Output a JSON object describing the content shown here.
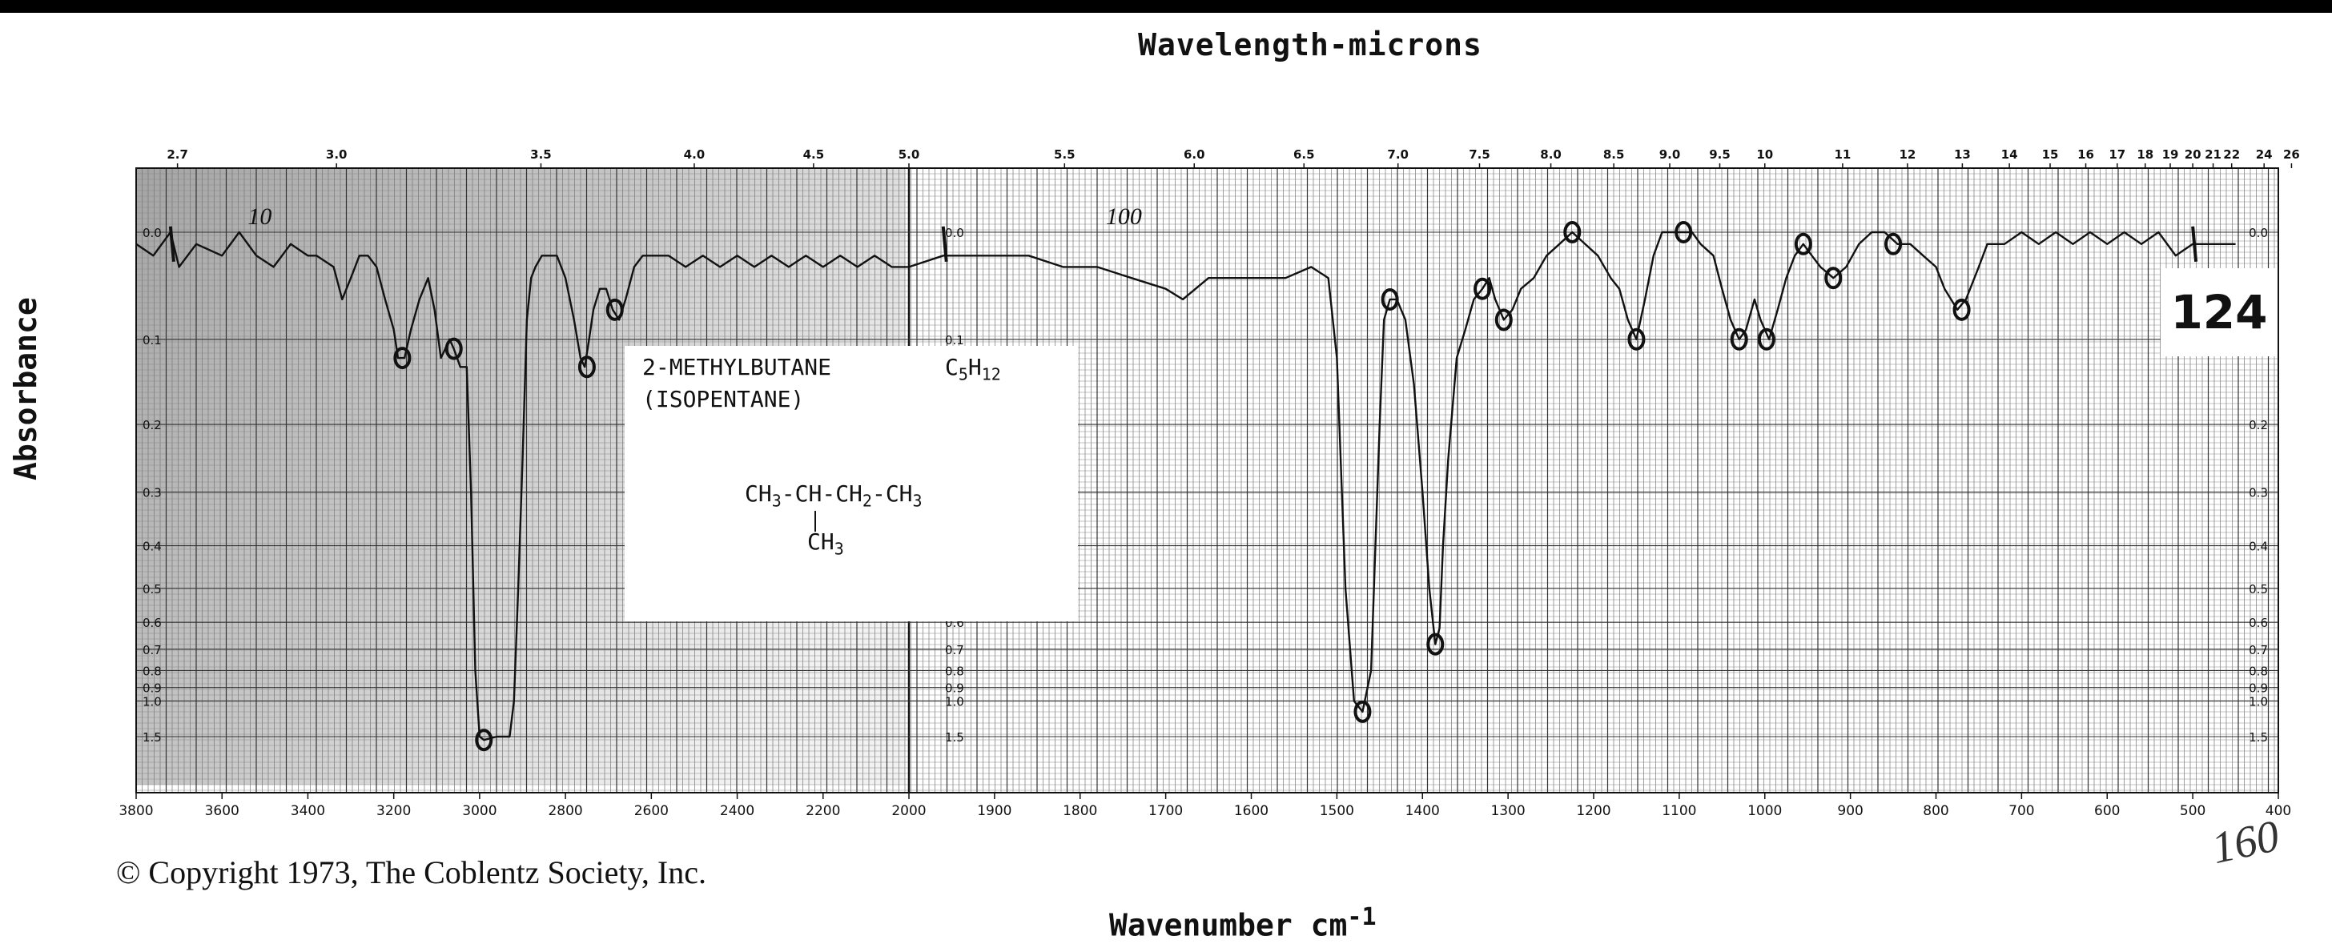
{
  "top_axis_title": "Wavelength-microns",
  "bottom_axis_title": "Wavenumber cm",
  "bottom_axis_exponent": "-1",
  "y_axis_title": "Absorbance",
  "copyright": "© Copyright 1973, The Coblentz Society, Inc.",
  "sample_number": "124",
  "handwritten_note": "160",
  "compound": {
    "name": "2-METHYLBUTANE",
    "alias": "(ISOPENTANE)",
    "formula_parts": [
      "C",
      "5",
      "H",
      "12"
    ],
    "structure_parts": [
      "CH",
      "3",
      "-CH-CH",
      "2",
      "-CH",
      "3"
    ],
    "branch_parts": [
      "CH",
      "3"
    ]
  },
  "colors": {
    "grid": "#6b6b6b",
    "grid_dark": "#2a2a2a",
    "trace": "#111111",
    "shading": "#9a9a9a"
  },
  "chart_data": {
    "type": "line",
    "title": "",
    "xlabel": "Wavenumber cm-1",
    "ylabel": "Absorbance",
    "x_axis_segments": [
      {
        "range": [
          3800,
          2000
        ],
        "ticks": [
          3800,
          3600,
          3400,
          3200,
          3000,
          2800,
          2600,
          2400,
          2200,
          2000
        ]
      },
      {
        "range": [
          2000,
          400
        ],
        "ticks": [
          1900,
          1800,
          1700,
          1600,
          1500,
          1400,
          1300,
          1200,
          1100,
          1000,
          900,
          800,
          700,
          600,
          500,
          400
        ]
      }
    ],
    "top_axis_ticks": [
      "2.7",
      "3.0",
      "3.5",
      "4.0",
      "4.5",
      "5.0",
      "5.5",
      "6.0",
      "6.5",
      "7.0",
      "7.5",
      "8.0",
      "8.5",
      "9.0",
      "9.5",
      "10",
      "11",
      "12",
      "13",
      "14",
      "15",
      "16",
      "17",
      "18",
      "19",
      "20",
      "21",
      "22",
      "24",
      "26"
    ],
    "y_ticks": [
      "0.0",
      "0.1",
      "0.2",
      "0.3",
      "0.4",
      "0.5",
      "0.6",
      "0.7",
      "0.8",
      "0.9",
      "1.0",
      "1.5"
    ],
    "ylim": [
      0,
      1.5
    ],
    "y_scale": "log",
    "annotations": [
      "10",
      "100"
    ],
    "series": [
      {
        "name": "",
        "points": [
          [
            3800,
            0.01
          ],
          [
            3760,
            0.02
          ],
          [
            3720,
            0.0
          ],
          [
            3700,
            0.03
          ],
          [
            3660,
            0.01
          ],
          [
            3600,
            0.02
          ],
          [
            3560,
            0.0
          ],
          [
            3520,
            0.02
          ],
          [
            3480,
            0.03
          ],
          [
            3440,
            0.01
          ],
          [
            3400,
            0.02
          ],
          [
            3380,
            0.02
          ],
          [
            3340,
            0.03
          ],
          [
            3320,
            0.06
          ],
          [
            3300,
            0.04
          ],
          [
            3280,
            0.02
          ],
          [
            3260,
            0.02
          ],
          [
            3240,
            0.03
          ],
          [
            3220,
            0.06
          ],
          [
            3200,
            0.09
          ],
          [
            3190,
            0.12
          ],
          [
            3175,
            0.12
          ],
          [
            3160,
            0.09
          ],
          [
            3140,
            0.06
          ],
          [
            3120,
            0.04
          ],
          [
            3105,
            0.07
          ],
          [
            3090,
            0.12
          ],
          [
            3080,
            0.11
          ],
          [
            3070,
            0.1
          ],
          [
            3060,
            0.11
          ],
          [
            3045,
            0.13
          ],
          [
            3030,
            0.13
          ],
          [
            3020,
            0.3
          ],
          [
            3010,
            0.8
          ],
          [
            3000,
            1.5
          ],
          [
            2990,
            1.6
          ],
          [
            2960,
            1.5
          ],
          [
            2940,
            1.5
          ],
          [
            2930,
            1.5
          ],
          [
            2920,
            1.0
          ],
          [
            2910,
            0.5
          ],
          [
            2900,
            0.25
          ],
          [
            2890,
            0.08
          ],
          [
            2880,
            0.04
          ],
          [
            2870,
            0.03
          ],
          [
            2855,
            0.02
          ],
          [
            2840,
            0.02
          ],
          [
            2820,
            0.02
          ],
          [
            2800,
            0.04
          ],
          [
            2780,
            0.08
          ],
          [
            2765,
            0.12
          ],
          [
            2755,
            0.13
          ],
          [
            2745,
            0.1
          ],
          [
            2735,
            0.07
          ],
          [
            2720,
            0.05
          ],
          [
            2705,
            0.05
          ],
          [
            2690,
            0.07
          ],
          [
            2675,
            0.08
          ],
          [
            2660,
            0.06
          ],
          [
            2640,
            0.03
          ],
          [
            2620,
            0.02
          ],
          [
            2600,
            0.02
          ],
          [
            2560,
            0.02
          ],
          [
            2520,
            0.03
          ],
          [
            2480,
            0.02
          ],
          [
            2440,
            0.03
          ],
          [
            2400,
            0.02
          ],
          [
            2360,
            0.03
          ],
          [
            2320,
            0.02
          ],
          [
            2280,
            0.03
          ],
          [
            2240,
            0.02
          ],
          [
            2200,
            0.03
          ],
          [
            2160,
            0.02
          ],
          [
            2120,
            0.03
          ],
          [
            2080,
            0.02
          ],
          [
            2040,
            0.03
          ],
          [
            2000,
            0.03
          ],
          [
            1960,
            0.02
          ],
          [
            1900,
            0.02
          ],
          [
            1860,
            0.02
          ],
          [
            1820,
            0.03
          ],
          [
            1780,
            0.03
          ],
          [
            1740,
            0.04
          ],
          [
            1700,
            0.05
          ],
          [
            1680,
            0.06
          ],
          [
            1650,
            0.04
          ],
          [
            1600,
            0.04
          ],
          [
            1560,
            0.04
          ],
          [
            1530,
            0.03
          ],
          [
            1510,
            0.04
          ],
          [
            1500,
            0.12
          ],
          [
            1490,
            0.5
          ],
          [
            1480,
            1.0
          ],
          [
            1470,
            1.1
          ],
          [
            1460,
            0.8
          ],
          [
            1455,
            0.4
          ],
          [
            1450,
            0.2
          ],
          [
            1445,
            0.08
          ],
          [
            1438,
            0.06
          ],
          [
            1430,
            0.06
          ],
          [
            1420,
            0.08
          ],
          [
            1410,
            0.15
          ],
          [
            1400,
            0.3
          ],
          [
            1392,
            0.5
          ],
          [
            1385,
            0.68
          ],
          [
            1380,
            0.62
          ],
          [
            1376,
            0.4
          ],
          [
            1370,
            0.25
          ],
          [
            1360,
            0.12
          ],
          [
            1350,
            0.09
          ],
          [
            1340,
            0.06
          ],
          [
            1330,
            0.05
          ],
          [
            1322,
            0.04
          ],
          [
            1315,
            0.06
          ],
          [
            1305,
            0.08
          ],
          [
            1295,
            0.07
          ],
          [
            1285,
            0.05
          ],
          [
            1270,
            0.04
          ],
          [
            1255,
            0.02
          ],
          [
            1240,
            0.01
          ],
          [
            1225,
            0.0
          ],
          [
            1210,
            0.01
          ],
          [
            1195,
            0.02
          ],
          [
            1180,
            0.04
          ],
          [
            1170,
            0.05
          ],
          [
            1160,
            0.08
          ],
          [
            1150,
            0.1
          ],
          [
            1140,
            0.06
          ],
          [
            1130,
            0.02
          ],
          [
            1120,
            0.0
          ],
          [
            1110,
            0.0
          ],
          [
            1100,
            0.0
          ],
          [
            1085,
            0.0
          ],
          [
            1075,
            0.01
          ],
          [
            1060,
            0.02
          ],
          [
            1050,
            0.05
          ],
          [
            1040,
            0.08
          ],
          [
            1030,
            0.1
          ],
          [
            1022,
            0.09
          ],
          [
            1012,
            0.06
          ],
          [
            1005,
            0.08
          ],
          [
            995,
            0.1
          ],
          [
            985,
            0.07
          ],
          [
            975,
            0.04
          ],
          [
            965,
            0.02
          ],
          [
            955,
            0.01
          ],
          [
            945,
            0.02
          ],
          [
            935,
            0.03
          ],
          [
            920,
            0.04
          ],
          [
            905,
            0.03
          ],
          [
            890,
            0.01
          ],
          [
            875,
            0.0
          ],
          [
            860,
            0.0
          ],
          [
            845,
            0.01
          ],
          [
            830,
            0.01
          ],
          [
            815,
            0.02
          ],
          [
            800,
            0.03
          ],
          [
            790,
            0.05
          ],
          [
            775,
            0.07
          ],
          [
            765,
            0.06
          ],
          [
            750,
            0.03
          ],
          [
            740,
            0.01
          ],
          [
            720,
            0.01
          ],
          [
            700,
            0.0
          ],
          [
            680,
            0.01
          ],
          [
            660,
            0.0
          ],
          [
            640,
            0.01
          ],
          [
            620,
            0.0
          ],
          [
            600,
            0.01
          ],
          [
            580,
            0.0
          ],
          [
            560,
            0.01
          ],
          [
            540,
            0.0
          ],
          [
            520,
            0.02
          ],
          [
            500,
            0.01
          ],
          [
            480,
            0.01
          ],
          [
            450,
            0.01
          ]
        ]
      }
    ]
  }
}
